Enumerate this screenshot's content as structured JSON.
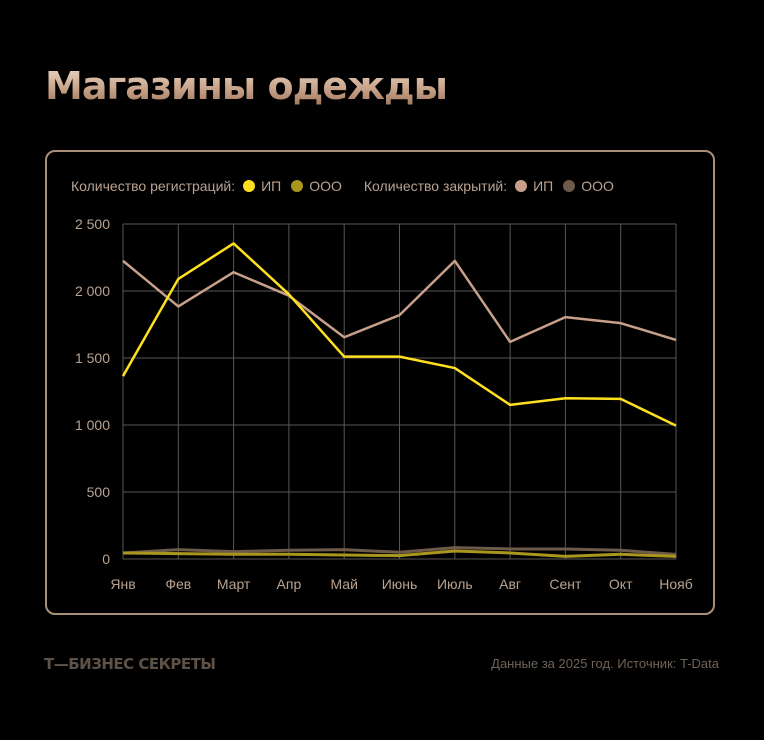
{
  "header": {
    "title": "Магазины одежды"
  },
  "legend": {
    "group1_label": "Количество регистраций:",
    "group1_items": [
      {
        "label": "ИП",
        "color": "#ffe01e"
      },
      {
        "label": "ООО",
        "color": "#a8961e"
      }
    ],
    "group2_label": "Количество закрытий:",
    "group2_items": [
      {
        "label": "ИП",
        "color": "#c8a08a"
      },
      {
        "label": "ООО",
        "color": "#6e5a4a"
      }
    ]
  },
  "footer": {
    "logo": "Т—БИЗНЕС СЕКРЕТЫ",
    "source": "Данные за 2025 год. Источник: T-Data"
  },
  "chart_data": {
    "type": "line",
    "title": "Магазины одежды",
    "xlabel": "",
    "ylabel": "",
    "categories": [
      "Янв",
      "Фев",
      "Март",
      "Апр",
      "Май",
      "Июнь",
      "Июль",
      "Авг",
      "Сент",
      "Окт",
      "Нояб"
    ],
    "y_ticks": [
      0,
      500,
      1000,
      1500,
      2000,
      2500
    ],
    "y_tick_labels": [
      "0",
      "500",
      "1 000",
      "1 500",
      "2 000",
      "2 500"
    ],
    "ylim": [
      0,
      2500
    ],
    "grid": true,
    "legend_position": "top",
    "series": [
      {
        "name": "Количество регистраций: ИП",
        "color": "#ffe01e",
        "width": 2.5,
        "values": [
          1365,
          2090,
          2355,
          1975,
          1510,
          1510,
          1425,
          1150,
          1200,
          1195,
          995
        ]
      },
      {
        "name": "Количество регистраций: ООО",
        "color": "#a8961e",
        "width": 3,
        "values": [
          45,
          40,
          35,
          35,
          30,
          25,
          60,
          45,
          20,
          35,
          20
        ]
      },
      {
        "name": "Количество закрытий: ИП",
        "color": "#c8a08a",
        "width": 2.5,
        "values": [
          2225,
          1885,
          2140,
          1965,
          1655,
          1820,
          2225,
          1620,
          1805,
          1760,
          1635
        ]
      },
      {
        "name": "Количество закрытий: ООО",
        "color": "#6e5a4a",
        "width": 3,
        "values": [
          45,
          70,
          55,
          65,
          70,
          50,
          85,
          75,
          75,
          65,
          35
        ]
      }
    ]
  }
}
